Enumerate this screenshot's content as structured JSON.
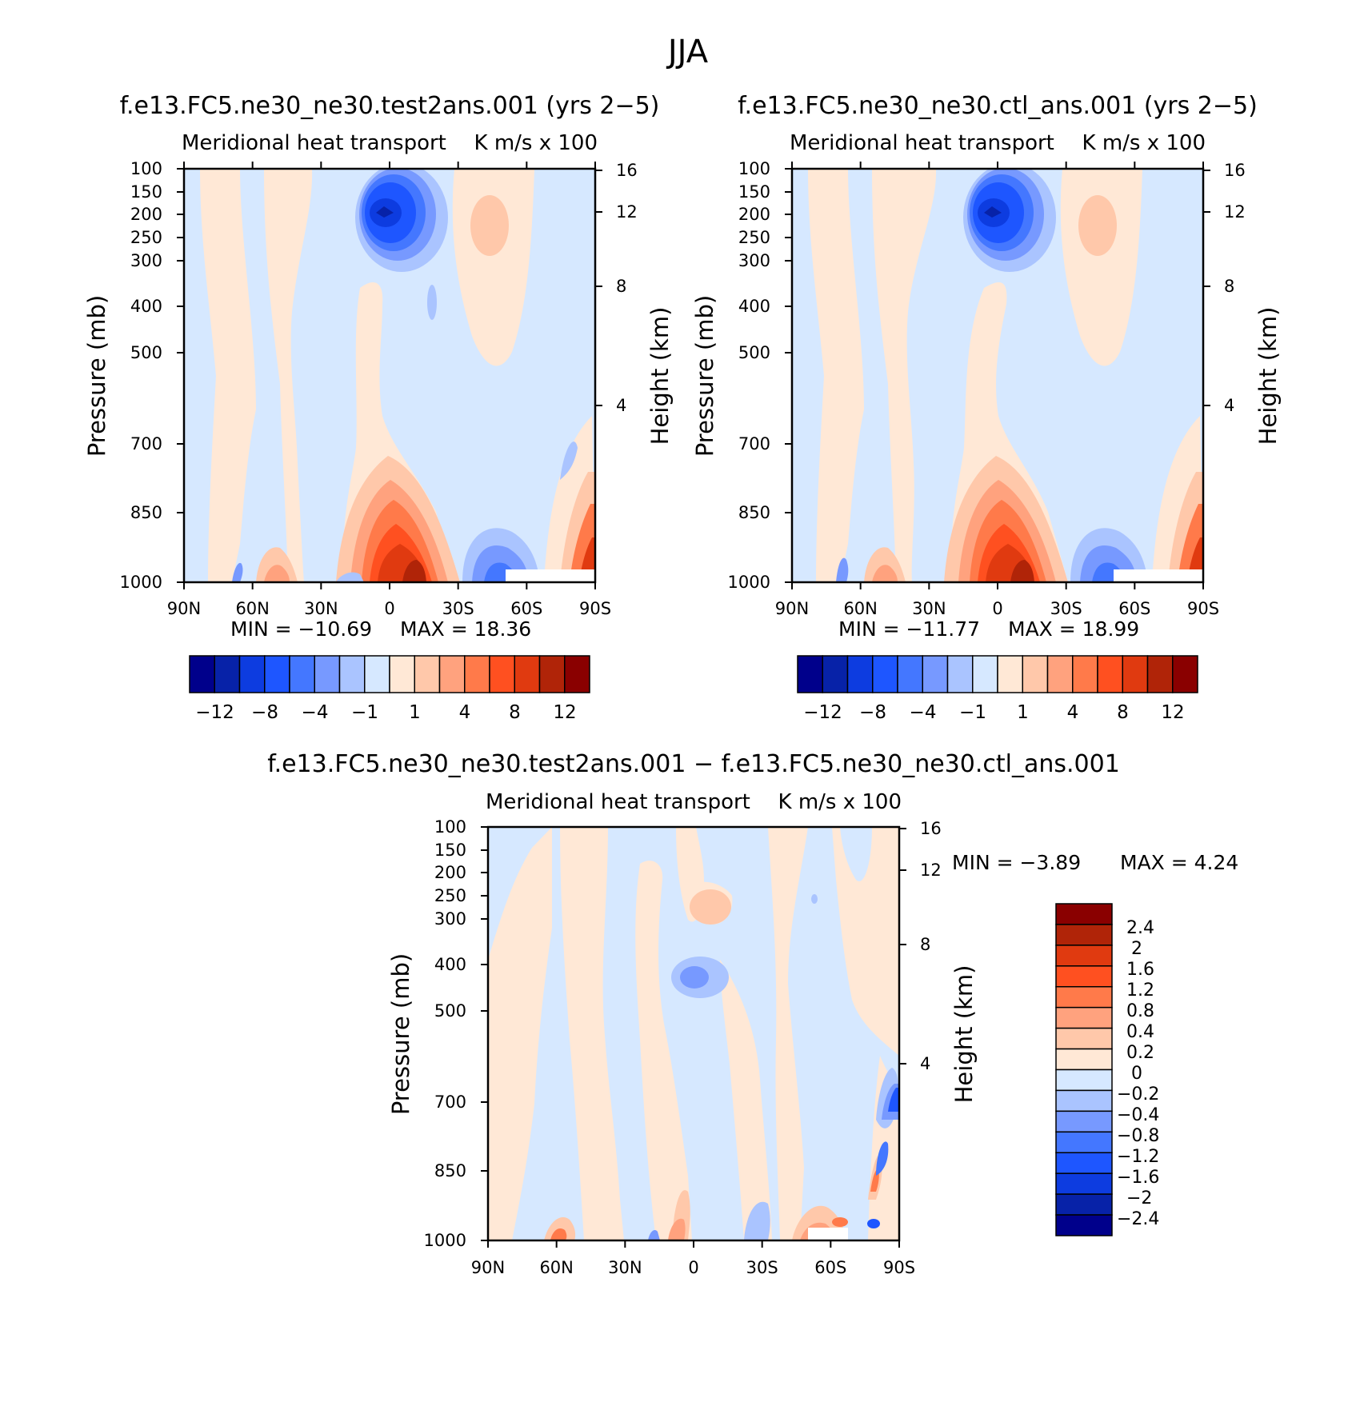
{
  "figure": {
    "title": "JJA",
    "diff_title": "f.e13.FC5.ne30_ne30.test2ans.001 − f.e13.FC5.ne30_ne30.ctl_ans.001"
  },
  "common": {
    "subtitle_left": "Meridional heat transport",
    "subtitle_right": "K m/s x 100",
    "y_label_left": "Pressure (mb)",
    "y_label_right": "Height (km)"
  },
  "colors": {
    "full_levels": [
      -14,
      -12,
      -10,
      -8,
      -6,
      -4,
      -2,
      -1,
      0,
      1,
      2,
      4,
      6,
      8,
      10,
      12,
      14
    ],
    "full_palette": [
      "#00008b",
      "#0722a8",
      "#0d3ce0",
      "#1e56ff",
      "#4477ff",
      "#7799ff",
      "#aac4ff",
      "#d6e8ff",
      "#ffe8d6",
      "#ffc8aa",
      "#ffa27e",
      "#ff7a4a",
      "#ff5020",
      "#e03a10",
      "#b02408",
      "#8a0000"
    ],
    "diff_palette": [
      "#00008b",
      "#0722a8",
      "#0d3ce0",
      "#1e56ff",
      "#4477ff",
      "#7799ff",
      "#aac4ff",
      "#d6e8ff",
      "#ffe8d6",
      "#ffc8aa",
      "#ffa27e",
      "#ff7a4a",
      "#ff5020",
      "#e03a10",
      "#b02408",
      "#8a0000"
    ]
  },
  "chart_data": [
    {
      "type": "heatmap",
      "title": "f.e13.FC5.ne30_ne30.test2ans.001 (yrs 2−5)",
      "subtitle_left": "Meridional heat transport",
      "subtitle_right": "K m/s x 100",
      "xlabel": "",
      "ylabel": "Pressure (mb)",
      "ylabel_right": "Height (km)",
      "x_ticks": [
        "90N",
        "60N",
        "30N",
        "0",
        "30S",
        "60S",
        "90S"
      ],
      "y_ticks": [
        100,
        150,
        200,
        250,
        300,
        400,
        500,
        700,
        850,
        1000
      ],
      "y_right_ticks": [
        16,
        12,
        8,
        4
      ],
      "y_scale": "log",
      "min": -10.69,
      "max": 18.36,
      "min_text": "MIN = −10.69",
      "max_text": "MAX =   18.36",
      "colorbar_labels": [
        "−12",
        "−8",
        "−4",
        "−1",
        "1",
        "4",
        "8",
        "12"
      ],
      "features": [
        {
          "lat": -5,
          "p": 200,
          "value": -10
        },
        {
          "lat": -15,
          "p": 200,
          "value": 2
        },
        {
          "lat": -12,
          "p": 950,
          "value": 16
        },
        {
          "lat": -50,
          "p": 950,
          "value": -8
        },
        {
          "lat": -85,
          "p": 900,
          "value": 10
        }
      ]
    },
    {
      "type": "heatmap",
      "title": "f.e13.FC5.ne30_ne30.ctl_ans.001 (yrs 2−5)",
      "subtitle_left": "Meridional heat transport",
      "subtitle_right": "K m/s x 100",
      "xlabel": "",
      "ylabel": "Pressure (mb)",
      "ylabel_right": "Height (km)",
      "x_ticks": [
        "90N",
        "60N",
        "30N",
        "0",
        "30S",
        "60S",
        "90S"
      ],
      "y_ticks": [
        100,
        150,
        200,
        250,
        300,
        400,
        500,
        700,
        850,
        1000
      ],
      "y_right_ticks": [
        16,
        12,
        8,
        4
      ],
      "y_scale": "log",
      "min": -11.77,
      "max": 18.99,
      "min_text": "MIN = −11.77",
      "max_text": "MAX =   18.99",
      "colorbar_labels": [
        "−12",
        "−8",
        "−4",
        "−1",
        "1",
        "4",
        "8",
        "12"
      ],
      "features": [
        {
          "lat": -5,
          "p": 200,
          "value": -11
        },
        {
          "lat": -15,
          "p": 200,
          "value": 2
        },
        {
          "lat": -12,
          "p": 950,
          "value": 17
        },
        {
          "lat": -50,
          "p": 950,
          "value": -9
        },
        {
          "lat": -85,
          "p": 900,
          "value": 11
        }
      ]
    },
    {
      "type": "heatmap",
      "title": "f.e13.FC5.ne30_ne30.test2ans.001 − f.e13.FC5.ne30_ne30.ctl_ans.001",
      "subtitle_left": "Meridional heat transport",
      "subtitle_right": "K m/s x 100",
      "xlabel": "",
      "ylabel": "Pressure (mb)",
      "ylabel_right": "Height (km)",
      "x_ticks": [
        "90N",
        "60N",
        "30N",
        "0",
        "30S",
        "60S",
        "90S"
      ],
      "y_ticks": [
        100,
        150,
        200,
        250,
        300,
        400,
        500,
        700,
        850,
        1000
      ],
      "y_right_ticks": [
        16,
        12,
        8,
        4
      ],
      "y_scale": "log",
      "min": -3.89,
      "max": 4.24,
      "min_text": "MIN =   −3.89",
      "max_text": "MAX =    4.24",
      "colorbar_labels": [
        "2.4",
        "2",
        "1.6",
        "1.2",
        "0.8",
        "0.4",
        "0.2",
        "0",
        "−0.2",
        "−0.4",
        "−0.8",
        "−1.2",
        "−1.6",
        "−2",
        "−2.4"
      ],
      "features": [
        {
          "lat": -10,
          "p": 250,
          "value": 0.4
        },
        {
          "lat": -10,
          "p": 420,
          "value": -0.4
        },
        {
          "lat": -82,
          "p": 700,
          "value": -2
        },
        {
          "lat": -82,
          "p": 900,
          "value": 1.2
        }
      ]
    }
  ]
}
